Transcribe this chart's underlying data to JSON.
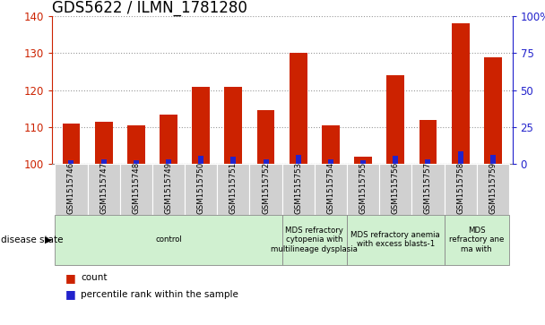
{
  "title": "GDS5622 / ILMN_1781280",
  "samples": [
    "GSM1515746",
    "GSM1515747",
    "GSM1515748",
    "GSM1515749",
    "GSM1515750",
    "GSM1515751",
    "GSM1515752",
    "GSM1515753",
    "GSM1515754",
    "GSM1515755",
    "GSM1515756",
    "GSM1515757",
    "GSM1515758",
    "GSM1515759"
  ],
  "count_values": [
    111,
    111.5,
    110.5,
    113.5,
    121,
    121,
    114.5,
    130,
    110.5,
    102,
    124,
    112,
    138,
    129
  ],
  "percentile_values": [
    2.5,
    3.5,
    2.5,
    3.5,
    5.5,
    5.0,
    3.5,
    6.5,
    3.5,
    2.5,
    5.5,
    3.5,
    8.5,
    6.5
  ],
  "base": 100,
  "ylim_left": [
    100,
    140
  ],
  "ylim_right": [
    0,
    100
  ],
  "yticks_left": [
    100,
    110,
    120,
    130,
    140
  ],
  "yticks_right": [
    0,
    25,
    50,
    75,
    100
  ],
  "yticklabels_right": [
    "0",
    "25",
    "50",
    "75",
    "100%"
  ],
  "bar_color_red": "#cc2200",
  "bar_color_blue": "#2222cc",
  "grid_color": "#999999",
  "disease_groups": [
    {
      "label": "control",
      "start": 0,
      "end": 7
    },
    {
      "label": "MDS refractory\ncytopenia with\nmultilineage dysplasia",
      "start": 7,
      "end": 9
    },
    {
      "label": "MDS refractory anemia\nwith excess blasts-1",
      "start": 9,
      "end": 12
    },
    {
      "label": "MDS\nrefractory ane\nma with",
      "start": 12,
      "end": 14
    }
  ],
  "disease_state_label": "disease state",
  "legend_count_label": "count",
  "legend_percentile_label": "percentile rank within the sample",
  "tick_color_left": "#cc2200",
  "tick_color_right": "#2222cc",
  "title_fontsize": 12,
  "tick_fontsize": 8.5,
  "label_fontsize": 8
}
